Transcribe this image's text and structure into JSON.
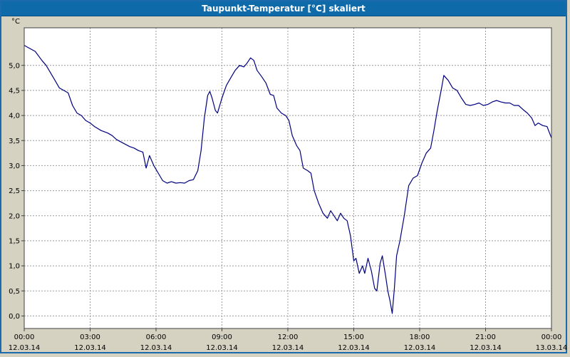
{
  "title": "Taupunkt-Temperatur [°C] skaliert",
  "colors": {
    "titlebar": "#0e6aa8",
    "background": "#d6d2c2",
    "plot_background": "#ffffff",
    "grid": "#9c9c9c",
    "plot_border": "#404040",
    "line": "#000080",
    "window_border": "#1a6aac",
    "title_text": "#ffffff"
  },
  "chart_data": {
    "type": "line",
    "title": "Taupunkt-Temperatur [°C] skaliert",
    "ylabel": "°C",
    "xlabel": "",
    "grid": "dashed",
    "legend": "none",
    "ylim": [
      -0.25,
      5.75
    ],
    "xlim_hours": [
      0,
      24
    ],
    "y_ticks": [
      {
        "value": 5.0,
        "label": "5,0"
      },
      {
        "value": 4.5,
        "label": "4,5"
      },
      {
        "value": 4.0,
        "label": "4,0"
      },
      {
        "value": 3.5,
        "label": "3,5"
      },
      {
        "value": 3.0,
        "label": "3,0"
      },
      {
        "value": 2.5,
        "label": "2,5"
      },
      {
        "value": 2.0,
        "label": "2,0"
      },
      {
        "value": 1.5,
        "label": "1,5"
      },
      {
        "value": 1.0,
        "label": "1,0"
      },
      {
        "value": 0.5,
        "label": "0,5"
      },
      {
        "value": 0.0,
        "label": "0,0"
      }
    ],
    "x_ticks": [
      {
        "hour": 0,
        "time": "00:00",
        "date": "12.03.14"
      },
      {
        "hour": 3,
        "time": "03:00",
        "date": "12.03.14"
      },
      {
        "hour": 6,
        "time": "06:00",
        "date": "12.03.14"
      },
      {
        "hour": 9,
        "time": "09:00",
        "date": "12.03.14"
      },
      {
        "hour": 12,
        "time": "12:00",
        "date": "12.03.14"
      },
      {
        "hour": 15,
        "time": "15:00",
        "date": "12.03.14"
      },
      {
        "hour": 18,
        "time": "18:00",
        "date": "12.03.14"
      },
      {
        "hour": 21,
        "time": "21:00",
        "date": "12.03.14"
      },
      {
        "hour": 24,
        "time": "00:00",
        "date": "13.03.14"
      }
    ],
    "series": [
      {
        "name": "Taupunkt-Temperatur",
        "color": "#000080",
        "points": [
          [
            0,
            5.4
          ],
          [
            0.2,
            5.35
          ],
          [
            0.5,
            5.28
          ],
          [
            0.8,
            5.1
          ],
          [
            1,
            5.0
          ],
          [
            1.2,
            4.85
          ],
          [
            1.4,
            4.7
          ],
          [
            1.6,
            4.55
          ],
          [
            1.8,
            4.5
          ],
          [
            2,
            4.45
          ],
          [
            2.2,
            4.2
          ],
          [
            2.4,
            4.05
          ],
          [
            2.6,
            4.0
          ],
          [
            2.8,
            3.9
          ],
          [
            3,
            3.85
          ],
          [
            3.2,
            3.78
          ],
          [
            3.5,
            3.7
          ],
          [
            3.8,
            3.65
          ],
          [
            4,
            3.6
          ],
          [
            4.2,
            3.52
          ],
          [
            4.5,
            3.45
          ],
          [
            4.8,
            3.38
          ],
          [
            5,
            3.35
          ],
          [
            5.2,
            3.3
          ],
          [
            5.4,
            3.27
          ],
          [
            5.55,
            2.95
          ],
          [
            5.7,
            3.2
          ],
          [
            5.9,
            3.0
          ],
          [
            6.1,
            2.85
          ],
          [
            6.3,
            2.7
          ],
          [
            6.5,
            2.65
          ],
          [
            6.7,
            2.68
          ],
          [
            6.9,
            2.65
          ],
          [
            7.1,
            2.66
          ],
          [
            7.3,
            2.65
          ],
          [
            7.5,
            2.7
          ],
          [
            7.7,
            2.72
          ],
          [
            7.9,
            2.9
          ],
          [
            8.05,
            3.3
          ],
          [
            8.2,
            3.95
          ],
          [
            8.35,
            4.4
          ],
          [
            8.45,
            4.48
          ],
          [
            8.55,
            4.35
          ],
          [
            8.7,
            4.1
          ],
          [
            8.8,
            4.05
          ],
          [
            9,
            4.35
          ],
          [
            9.2,
            4.6
          ],
          [
            9.4,
            4.75
          ],
          [
            9.6,
            4.9
          ],
          [
            9.8,
            5.0
          ],
          [
            10,
            4.97
          ],
          [
            10.15,
            5.05
          ],
          [
            10.3,
            5.15
          ],
          [
            10.45,
            5.1
          ],
          [
            10.6,
            4.9
          ],
          [
            10.8,
            4.78
          ],
          [
            11,
            4.65
          ],
          [
            11.2,
            4.42
          ],
          [
            11.35,
            4.4
          ],
          [
            11.5,
            4.15
          ],
          [
            11.7,
            4.05
          ],
          [
            11.9,
            4.0
          ],
          [
            12.05,
            3.9
          ],
          [
            12.2,
            3.6
          ],
          [
            12.4,
            3.4
          ],
          [
            12.55,
            3.3
          ],
          [
            12.7,
            2.95
          ],
          [
            12.9,
            2.9
          ],
          [
            13.05,
            2.85
          ],
          [
            13.2,
            2.5
          ],
          [
            13.4,
            2.25
          ],
          [
            13.6,
            2.05
          ],
          [
            13.8,
            1.95
          ],
          [
            13.95,
            2.1
          ],
          [
            14.1,
            2.0
          ],
          [
            14.25,
            1.9
          ],
          [
            14.4,
            2.05
          ],
          [
            14.55,
            1.95
          ],
          [
            14.7,
            1.9
          ],
          [
            14.85,
            1.6
          ],
          [
            15,
            1.1
          ],
          [
            15.1,
            1.15
          ],
          [
            15.25,
            0.85
          ],
          [
            15.4,
            1.0
          ],
          [
            15.5,
            0.85
          ],
          [
            15.65,
            1.15
          ],
          [
            15.8,
            0.9
          ],
          [
            15.95,
            0.55
          ],
          [
            16.05,
            0.5
          ],
          [
            16.2,
            1.05
          ],
          [
            16.3,
            1.2
          ],
          [
            16.45,
            0.8
          ],
          [
            16.55,
            0.5
          ],
          [
            16.65,
            0.3
          ],
          [
            16.75,
            0.05
          ],
          [
            16.85,
            0.55
          ],
          [
            16.95,
            1.2
          ],
          [
            17.1,
            1.5
          ],
          [
            17.3,
            2.0
          ],
          [
            17.5,
            2.6
          ],
          [
            17.7,
            2.75
          ],
          [
            17.9,
            2.8
          ],
          [
            18.1,
            3.05
          ],
          [
            18.3,
            3.25
          ],
          [
            18.5,
            3.35
          ],
          [
            18.65,
            3.7
          ],
          [
            18.8,
            4.1
          ],
          [
            19,
            4.55
          ],
          [
            19.1,
            4.8
          ],
          [
            19.3,
            4.7
          ],
          [
            19.5,
            4.55
          ],
          [
            19.7,
            4.5
          ],
          [
            19.9,
            4.35
          ],
          [
            20.1,
            4.22
          ],
          [
            20.3,
            4.2
          ],
          [
            20.5,
            4.22
          ],
          [
            20.7,
            4.25
          ],
          [
            20.9,
            4.2
          ],
          [
            21.1,
            4.22
          ],
          [
            21.3,
            4.27
          ],
          [
            21.5,
            4.3
          ],
          [
            21.7,
            4.27
          ],
          [
            21.9,
            4.25
          ],
          [
            22.1,
            4.25
          ],
          [
            22.3,
            4.2
          ],
          [
            22.5,
            4.2
          ],
          [
            22.7,
            4.12
          ],
          [
            22.9,
            4.05
          ],
          [
            23.1,
            3.95
          ],
          [
            23.25,
            3.8
          ],
          [
            23.4,
            3.85
          ],
          [
            23.6,
            3.8
          ],
          [
            23.8,
            3.78
          ],
          [
            24,
            3.55
          ]
        ]
      }
    ]
  }
}
